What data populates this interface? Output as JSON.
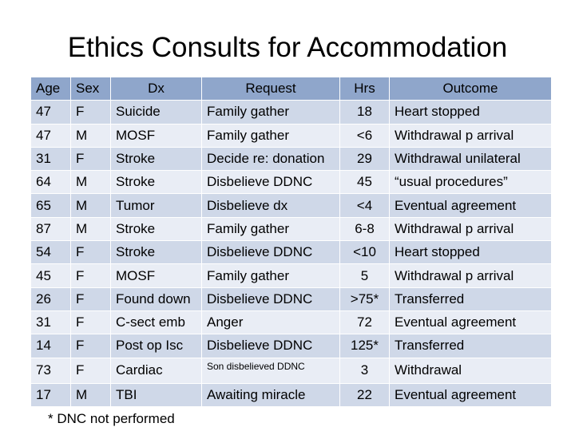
{
  "title": "Ethics Consults for Accommodation",
  "table": {
    "headers": [
      "Age",
      "Sex",
      "Dx",
      "Request",
      "Hrs",
      "Outcome"
    ],
    "rows": [
      [
        "47",
        "F",
        "Suicide",
        "Family gather",
        "18",
        "Heart stopped"
      ],
      [
        "47",
        "M",
        "MOSF",
        "Family gather",
        "<6",
        "Withdrawal p arrival"
      ],
      [
        "31",
        "F",
        "Stroke",
        "Decide re: donation",
        "29",
        "Withdrawal unilateral"
      ],
      [
        "64",
        "M",
        "Stroke",
        "Disbelieve DDNC",
        "45",
        "“usual procedures”"
      ],
      [
        "65",
        "M",
        "Tumor",
        "Disbelieve dx",
        "<4",
        "Eventual agreement"
      ],
      [
        "87",
        "M",
        "Stroke",
        "Family gather",
        "6-8",
        "Withdrawal p arrival"
      ],
      [
        "54",
        "F",
        "Stroke",
        "Disbelieve DDNC",
        "<10",
        "Heart stopped"
      ],
      [
        "45",
        "F",
        "MOSF",
        "Family gather",
        "5",
        "Withdrawal p arrival"
      ],
      [
        "26",
        "F",
        "Found down",
        "Disbelieve DDNC",
        ">75*",
        "Transferred"
      ],
      [
        "31",
        "F",
        "C-sect emb",
        "Anger",
        "72",
        "Eventual agreement"
      ],
      [
        "14",
        "F",
        "Post op Isc",
        "Disbelieve DDNC",
        "125*",
        "Transferred"
      ],
      [
        "73",
        "F",
        "Cardiac",
        "Son disbelieved DDNC",
        "3",
        "Withdrawal"
      ],
      [
        "17",
        "M",
        "TBI",
        "Awaiting miracle",
        "22",
        "Eventual agreement"
      ]
    ]
  },
  "footnote": "* DNC not performed"
}
